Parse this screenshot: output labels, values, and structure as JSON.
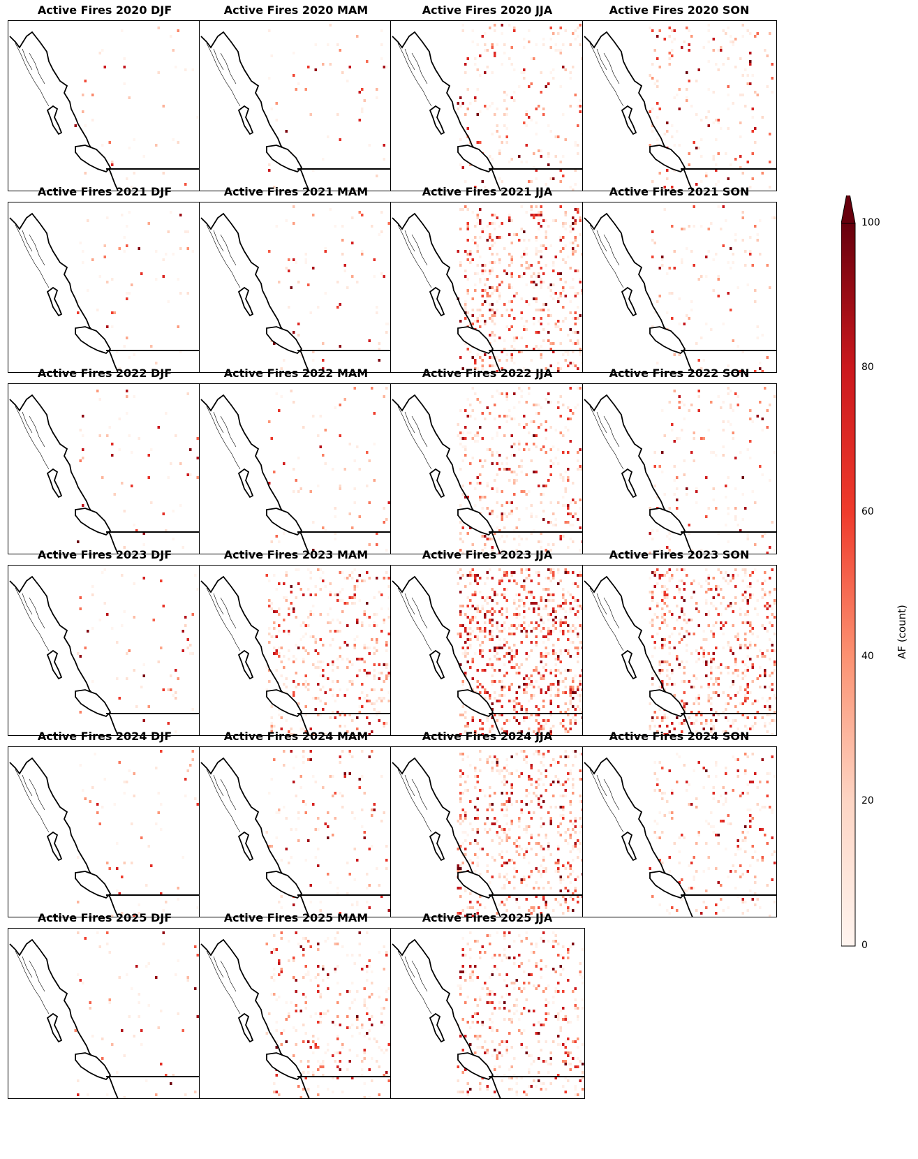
{
  "figure": {
    "colorbar": {
      "label": "AF (count)",
      "ticks": [
        0,
        20,
        40,
        60,
        80,
        100
      ],
      "range": [
        0,
        100
      ],
      "extend": "max",
      "colormap": "Reds",
      "colors": [
        "#fff5f0",
        "#fcbba1",
        "#fb6a4a",
        "#cb181d",
        "#67000d"
      ]
    },
    "panels": [
      {
        "title": "Active Fires 2020 DJF",
        "activity": 0.02
      },
      {
        "title": "Active Fires 2020 MAM",
        "activity": 0.03
      },
      {
        "title": "Active Fires 2020 JJA",
        "activity": 0.22
      },
      {
        "title": "Active Fires 2020 SON",
        "activity": 0.18
      },
      {
        "title": "Active Fires 2021 DJF",
        "activity": 0.04
      },
      {
        "title": "Active Fires 2021 MAM",
        "activity": 0.06
      },
      {
        "title": "Active Fires 2021 JJA",
        "activity": 0.55
      },
      {
        "title": "Active Fires 2021 SON",
        "activity": 0.1
      },
      {
        "title": "Active Fires 2022 DJF",
        "activity": 0.04
      },
      {
        "title": "Active Fires 2022 MAM",
        "activity": 0.05
      },
      {
        "title": "Active Fires 2022 JJA",
        "activity": 0.4
      },
      {
        "title": "Active Fires 2022 SON",
        "activity": 0.14
      },
      {
        "title": "Active Fires 2023 DJF",
        "activity": 0.04
      },
      {
        "title": "Active Fires 2023 MAM",
        "activity": 0.45
      },
      {
        "title": "Active Fires 2023 JJA",
        "activity": 0.85
      },
      {
        "title": "Active Fires 2023 SON",
        "activity": 0.65
      },
      {
        "title": "Active Fires 2024 DJF",
        "activity": 0.04
      },
      {
        "title": "Active Fires 2024 MAM",
        "activity": 0.12
      },
      {
        "title": "Active Fires 2024 JJA",
        "activity": 0.6
      },
      {
        "title": "Active Fires 2024 SON",
        "activity": 0.22
      },
      {
        "title": "Active Fires 2025 DJF",
        "activity": 0.05
      },
      {
        "title": "Active Fires 2025 MAM",
        "activity": 0.3
      },
      {
        "title": "Active Fires 2025 JJA",
        "activity": 0.45
      }
    ]
  }
}
